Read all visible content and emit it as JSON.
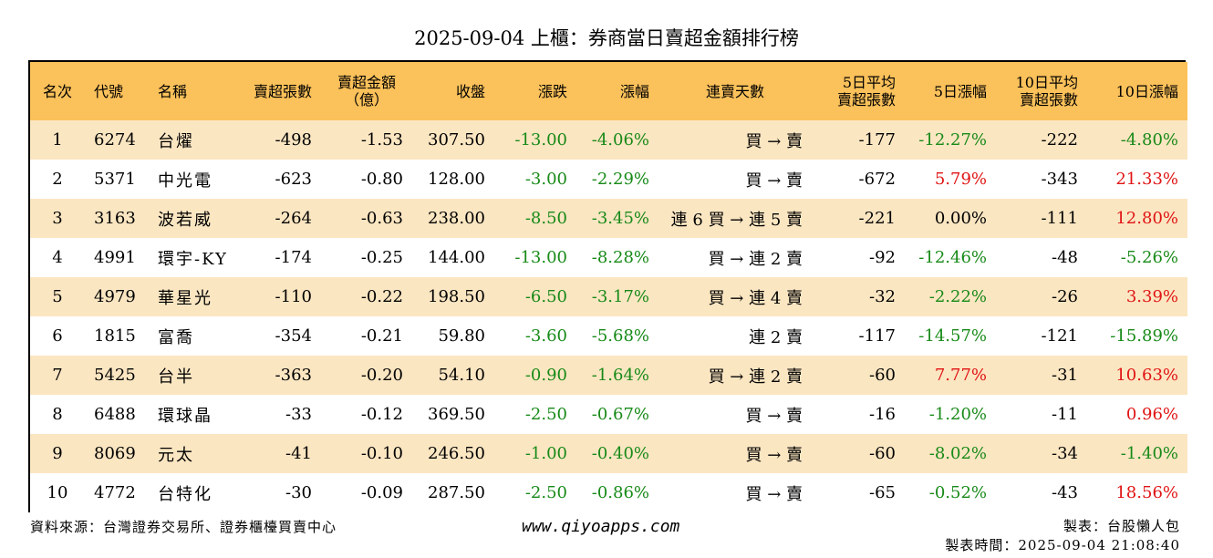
{
  "title": "2025-09-04 上櫃：券商當日賣超金額排行榜",
  "headers": {
    "rank": "名次",
    "code": "代號",
    "name": "名稱",
    "sell_shares": "賣超張數",
    "sell_amount_line1": "賣超金額",
    "sell_amount_line2": "（億）",
    "close": "收盤",
    "change": "漲跌",
    "change_pct": "漲幅",
    "streak": "連賣天數",
    "avg5_line1": "5日平均",
    "avg5_line2": "賣超張數",
    "pct5": "5日漲幅",
    "avg10_line1": "10日平均",
    "avg10_line2": "賣超張數",
    "pct10": "10日漲幅"
  },
  "rows": [
    {
      "rank": "1",
      "code": "6274",
      "name": "台燿",
      "sell_shares": "-498",
      "sell_amount": "-1.53",
      "close": "307.50",
      "change": "-13.00",
      "change_pct": "-4.06%",
      "streak": "買 → 賣",
      "avg5": "-177",
      "pct5": "-12.27%",
      "avg10": "-222",
      "pct10": "-4.80%"
    },
    {
      "rank": "2",
      "code": "5371",
      "name": "中光電",
      "sell_shares": "-623",
      "sell_amount": "-0.80",
      "close": "128.00",
      "change": "-3.00",
      "change_pct": "-2.29%",
      "streak": "買 → 賣",
      "avg5": "-672",
      "pct5": "5.79%",
      "avg10": "-343",
      "pct10": "21.33%"
    },
    {
      "rank": "3",
      "code": "3163",
      "name": "波若威",
      "sell_shares": "-264",
      "sell_amount": "-0.63",
      "close": "238.00",
      "change": "-8.50",
      "change_pct": "-3.45%",
      "streak": "連 6 買 → 連 5 賣",
      "avg5": "-221",
      "pct5": "0.00%",
      "avg10": "-111",
      "pct10": "12.80%"
    },
    {
      "rank": "4",
      "code": "4991",
      "name": "環宇-KY",
      "sell_shares": "-174",
      "sell_amount": "-0.25",
      "close": "144.00",
      "change": "-13.00",
      "change_pct": "-8.28%",
      "streak": "買 → 連 2 賣",
      "avg5": "-92",
      "pct5": "-12.46%",
      "avg10": "-48",
      "pct10": "-5.26%"
    },
    {
      "rank": "5",
      "code": "4979",
      "name": "華星光",
      "sell_shares": "-110",
      "sell_amount": "-0.22",
      "close": "198.50",
      "change": "-6.50",
      "change_pct": "-3.17%",
      "streak": "買 → 連 4 賣",
      "avg5": "-32",
      "pct5": "-2.22%",
      "avg10": "-26",
      "pct10": "3.39%"
    },
    {
      "rank": "6",
      "code": "1815",
      "name": "富喬",
      "sell_shares": "-354",
      "sell_amount": "-0.21",
      "close": "59.80",
      "change": "-3.60",
      "change_pct": "-5.68%",
      "streak": "連 2 賣",
      "avg5": "-117",
      "pct5": "-14.57%",
      "avg10": "-121",
      "pct10": "-15.89%"
    },
    {
      "rank": "7",
      "code": "5425",
      "name": "台半",
      "sell_shares": "-363",
      "sell_amount": "-0.20",
      "close": "54.10",
      "change": "-0.90",
      "change_pct": "-1.64%",
      "streak": "買 → 連 2 賣",
      "avg5": "-60",
      "pct5": "7.77%",
      "avg10": "-31",
      "pct10": "10.63%"
    },
    {
      "rank": "8",
      "code": "6488",
      "name": "環球晶",
      "sell_shares": "-33",
      "sell_amount": "-0.12",
      "close": "369.50",
      "change": "-2.50",
      "change_pct": "-0.67%",
      "streak": "買 → 賣",
      "avg5": "-16",
      "pct5": "-1.20%",
      "avg10": "-11",
      "pct10": "0.96%"
    },
    {
      "rank": "9",
      "code": "8069",
      "name": "元太",
      "sell_shares": "-41",
      "sell_amount": "-0.10",
      "close": "246.50",
      "change": "-1.00",
      "change_pct": "-0.40%",
      "streak": "買 → 賣",
      "avg5": "-60",
      "pct5": "-8.02%",
      "avg10": "-34",
      "pct10": "-1.40%"
    },
    {
      "rank": "10",
      "code": "4772",
      "name": "台特化",
      "sell_shares": "-30",
      "sell_amount": "-0.09",
      "close": "287.50",
      "change": "-2.50",
      "change_pct": "-0.86%",
      "streak": "買 → 賣",
      "avg5": "-65",
      "pct5": "-0.52%",
      "avg10": "-43",
      "pct10": "18.56%"
    }
  ],
  "colors": {
    "header_bg": "#fbc15a",
    "odd_row_bg": "#fbe6c2",
    "positive": "#e01414",
    "negative": "#188a18"
  },
  "footer": {
    "source": "資料來源：台灣證券交易所、證券櫃檯買賣中心",
    "url": "www.qiyoapps.com",
    "author": "製表：台股懶人包",
    "timestamp": "製表時間：2025-09-04 21:08:40"
  }
}
